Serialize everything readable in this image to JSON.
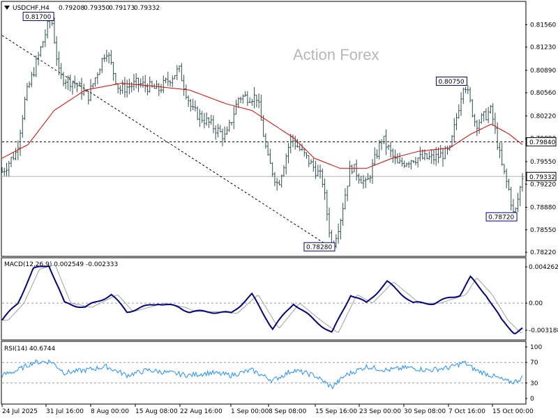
{
  "watermark": "Action Forex",
  "chart_data": [
    {
      "type": "ohlc",
      "title": "USDCHF,H4",
      "header_values": [
        "0.79208",
        "0.79350",
        "0.79173",
        "0.79332"
      ],
      "y_ticks": [
        "0.81560",
        "0.81230",
        "0.80890",
        "0.80560",
        "0.80220",
        "0.79890",
        "0.79550",
        "0.79220",
        "0.78880",
        "0.78550",
        "0.78220"
      ],
      "ylim": [
        0.7817,
        0.8189
      ],
      "current_price": "0.79332",
      "reference_level": "0.79840",
      "annotations": [
        {
          "label": "0.81700",
          "value": 0.817,
          "xi": 0.094
        },
        {
          "label": "0.80750",
          "value": 0.8075,
          "xi": 0.888
        },
        {
          "label": "0.78280",
          "value": 0.7828,
          "xi": 0.634
        },
        {
          "label": "0.78720",
          "value": 0.7872,
          "xi": 0.984
        }
      ],
      "path_anchors": [
        [
          0.0,
          0.794
        ],
        [
          0.028,
          0.797
        ],
        [
          0.045,
          0.805
        ],
        [
          0.07,
          0.811
        ],
        [
          0.094,
          0.817
        ],
        [
          0.11,
          0.808
        ],
        [
          0.14,
          0.807
        ],
        [
          0.165,
          0.805
        ],
        [
          0.2,
          0.812
        ],
        [
          0.225,
          0.806
        ],
        [
          0.26,
          0.807
        ],
        [
          0.3,
          0.806
        ],
        [
          0.34,
          0.809
        ],
        [
          0.365,
          0.803
        ],
        [
          0.4,
          0.801
        ],
        [
          0.43,
          0.799
        ],
        [
          0.455,
          0.805
        ],
        [
          0.49,
          0.805
        ],
        [
          0.51,
          0.796
        ],
        [
          0.53,
          0.792
        ],
        [
          0.555,
          0.799
        ],
        [
          0.585,
          0.796
        ],
        [
          0.615,
          0.793
        ],
        [
          0.634,
          0.7828
        ],
        [
          0.65,
          0.787
        ],
        [
          0.67,
          0.795
        ],
        [
          0.7,
          0.792
        ],
        [
          0.73,
          0.799
        ],
        [
          0.76,
          0.795
        ],
        [
          0.79,
          0.796
        ],
        [
          0.83,
          0.796
        ],
        [
          0.86,
          0.797
        ],
        [
          0.888,
          0.8075
        ],
        [
          0.91,
          0.801
        ],
        [
          0.94,
          0.803
        ],
        [
          0.96,
          0.795
        ],
        [
          0.975,
          0.791
        ],
        [
          0.984,
          0.7872
        ],
        [
          1.0,
          0.7933
        ]
      ],
      "ma_anchors": [
        [
          0.0,
          0.796
        ],
        [
          0.05,
          0.798
        ],
        [
          0.1,
          0.803
        ],
        [
          0.16,
          0.806
        ],
        [
          0.23,
          0.807
        ],
        [
          0.3,
          0.8065
        ],
        [
          0.36,
          0.806
        ],
        [
          0.43,
          0.804
        ],
        [
          0.48,
          0.803
        ],
        [
          0.52,
          0.801
        ],
        [
          0.56,
          0.799
        ],
        [
          0.6,
          0.796
        ],
        [
          0.65,
          0.7945
        ],
        [
          0.7,
          0.7945
        ],
        [
          0.75,
          0.796
        ],
        [
          0.8,
          0.797
        ],
        [
          0.86,
          0.7975
        ],
        [
          0.9,
          0.7995
        ],
        [
          0.94,
          0.801
        ],
        [
          0.975,
          0.7995
        ],
        [
          1.0,
          0.798
        ]
      ],
      "trendline": [
        [
          0.0,
          0.814
        ],
        [
          0.634,
          0.7828
        ]
      ]
    },
    {
      "type": "line",
      "title": "MACD(12,26,9) 0.002549 -0.002333",
      "y_ticks": [
        "0.004262",
        "0.00",
        "-0.003188"
      ],
      "ylim": [
        -0.004,
        0.005
      ],
      "macd_anchors": [
        [
          0.0,
          -0.002
        ],
        [
          0.03,
          0.0
        ],
        [
          0.06,
          0.004
        ],
        [
          0.09,
          0.0045
        ],
        [
          0.12,
          0.0
        ],
        [
          0.16,
          -0.0005
        ],
        [
          0.21,
          0.001
        ],
        [
          0.24,
          -0.001
        ],
        [
          0.3,
          0.0
        ],
        [
          0.34,
          -0.0005
        ],
        [
          0.36,
          -0.001
        ],
        [
          0.4,
          -0.001
        ],
        [
          0.44,
          -0.0012
        ],
        [
          0.48,
          0.001
        ],
        [
          0.52,
          -0.003
        ],
        [
          0.56,
          0.0
        ],
        [
          0.6,
          -0.002
        ],
        [
          0.634,
          -0.0035
        ],
        [
          0.67,
          0.001
        ],
        [
          0.7,
          0.0
        ],
        [
          0.74,
          0.0025
        ],
        [
          0.79,
          0.0
        ],
        [
          0.83,
          0.0
        ],
        [
          0.88,
          0.001
        ],
        [
          0.9,
          0.003
        ],
        [
          0.93,
          0.001
        ],
        [
          0.96,
          -0.002
        ],
        [
          0.985,
          -0.0035
        ],
        [
          1.0,
          -0.003
        ]
      ]
    },
    {
      "type": "line",
      "title": "RSI(14) 40.6744",
      "y_ticks": [
        "100",
        "70",
        "30",
        "0"
      ],
      "ylim": [
        0,
        100
      ],
      "levels": [
        70,
        30
      ],
      "rsi_anchors": [
        [
          0.0,
          45
        ],
        [
          0.03,
          55
        ],
        [
          0.06,
          70
        ],
        [
          0.094,
          72
        ],
        [
          0.12,
          50
        ],
        [
          0.16,
          55
        ],
        [
          0.2,
          62
        ],
        [
          0.24,
          45
        ],
        [
          0.28,
          55
        ],
        [
          0.32,
          50
        ],
        [
          0.36,
          45
        ],
        [
          0.4,
          50
        ],
        [
          0.44,
          45
        ],
        [
          0.48,
          55
        ],
        [
          0.52,
          35
        ],
        [
          0.56,
          55
        ],
        [
          0.6,
          45
        ],
        [
          0.634,
          22
        ],
        [
          0.66,
          45
        ],
        [
          0.7,
          62
        ],
        [
          0.74,
          55
        ],
        [
          0.78,
          60
        ],
        [
          0.82,
          55
        ],
        [
          0.86,
          60
        ],
        [
          0.888,
          70
        ],
        [
          0.91,
          55
        ],
        [
          0.94,
          45
        ],
        [
          0.97,
          33
        ],
        [
          0.985,
          32
        ],
        [
          1.0,
          40.67
        ]
      ]
    }
  ],
  "x_ticks": [
    "24 Jul 2025",
    "31 Jul 16:00",
    "8 Aug 00:00",
    "15 Aug 08:00",
    "22 Aug 16:00",
    "1 Sep 00:00",
    "8 Sep 08:00",
    "15 Sep 16:00",
    "23 Sep 00:00",
    "30 Sep 08:00",
    "7 Oct 16:00",
    "15 Oct 00:00"
  ],
  "colors": {
    "price": "#2f4f4f",
    "ma": "#e00000",
    "macd": "#000080",
    "signal": "#a0a0a0",
    "rsi": "#1e90ff",
    "grid_dash": "#888888"
  }
}
